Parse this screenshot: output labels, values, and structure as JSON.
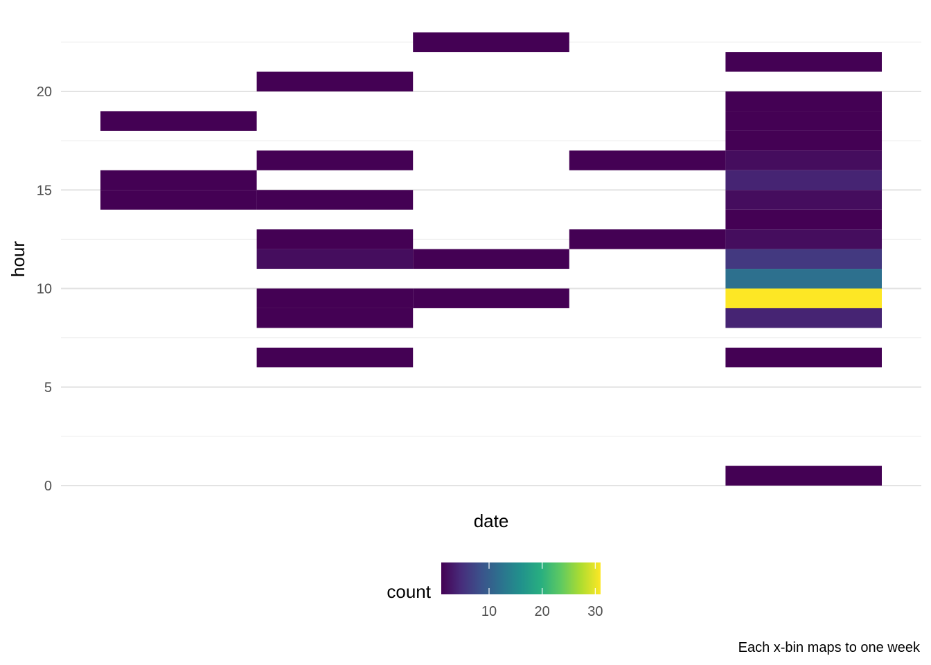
{
  "chart_data": {
    "type": "heatmap",
    "xlabel": "date",
    "ylabel": "hour",
    "caption": "Each x-bin maps to one week",
    "x_bins": 5,
    "ylim": [
      -0.5,
      23
    ],
    "y_ticks": [
      0,
      5,
      10,
      15,
      20
    ],
    "y_bin_height": 1,
    "grid": true,
    "legend": {
      "title": "count",
      "position": "bottom",
      "range": [
        1,
        31
      ],
      "ticks": [
        10,
        20,
        30
      ],
      "colormap": "viridis"
    },
    "cells": [
      {
        "x": 1,
        "y": 18,
        "count": 1
      },
      {
        "x": 1,
        "y": 15,
        "count": 1
      },
      {
        "x": 1,
        "y": 14,
        "count": 1
      },
      {
        "x": 2,
        "y": 20,
        "count": 1
      },
      {
        "x": 2,
        "y": 16,
        "count": 1
      },
      {
        "x": 2,
        "y": 14,
        "count": 1
      },
      {
        "x": 2,
        "y": 12,
        "count": 1
      },
      {
        "x": 2,
        "y": 11,
        "count": 2
      },
      {
        "x": 2,
        "y": 9,
        "count": 1
      },
      {
        "x": 2,
        "y": 8,
        "count": 1
      },
      {
        "x": 2,
        "y": 6,
        "count": 1
      },
      {
        "x": 3,
        "y": 22,
        "count": 1
      },
      {
        "x": 3,
        "y": 11,
        "count": 1
      },
      {
        "x": 3,
        "y": 9,
        "count": 1
      },
      {
        "x": 4,
        "y": 16,
        "count": 1
      },
      {
        "x": 4,
        "y": 12,
        "count": 1
      },
      {
        "x": 5,
        "y": 21,
        "count": 1
      },
      {
        "x": 5,
        "y": 19,
        "count": 1
      },
      {
        "x": 5,
        "y": 18,
        "count": 1
      },
      {
        "x": 5,
        "y": 17,
        "count": 1
      },
      {
        "x": 5,
        "y": 16,
        "count": 2
      },
      {
        "x": 5,
        "y": 15,
        "count": 4
      },
      {
        "x": 5,
        "y": 14,
        "count": 2
      },
      {
        "x": 5,
        "y": 13,
        "count": 1
      },
      {
        "x": 5,
        "y": 12,
        "count": 2
      },
      {
        "x": 5,
        "y": 11,
        "count": 6
      },
      {
        "x": 5,
        "y": 10,
        "count": 12
      },
      {
        "x": 5,
        "y": 9,
        "count": 31
      },
      {
        "x": 5,
        "y": 8,
        "count": 4
      },
      {
        "x": 5,
        "y": 6,
        "count": 1
      },
      {
        "x": 5,
        "y": 0,
        "count": 1
      }
    ]
  }
}
